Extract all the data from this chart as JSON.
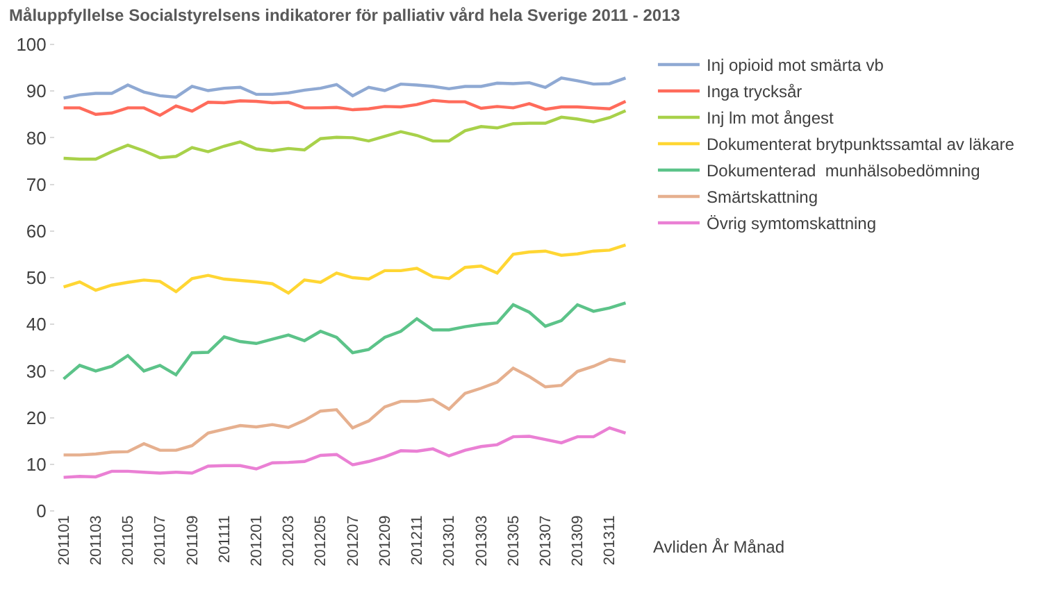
{
  "chart_data": {
    "type": "line",
    "title": "Måluppfyllelse Socialstyrelsens indikatorer för palliativ vård hela Sverige 2011 - 2013",
    "xlabel": "Avliden År Månad",
    "categories": [
      "201101",
      null,
      "201103",
      null,
      "201105",
      null,
      "201107",
      null,
      "201109",
      null,
      "201111",
      null,
      "201201",
      null,
      "201203",
      null,
      "201205",
      null,
      "201207",
      null,
      "201209",
      null,
      "201211",
      null,
      "201301",
      null,
      "201303",
      null,
      "201305",
      null,
      "201307",
      null,
      "201309",
      null,
      "201311",
      null
    ],
    "ylim": [
      0,
      100
    ],
    "yticks": [
      0,
      10,
      20,
      30,
      40,
      50,
      60,
      70,
      80,
      90,
      100
    ],
    "grid": false,
    "legend": "top right",
    "marker": "none",
    "line_style": "solid",
    "series": [
      {
        "name": "Inj opioid mot smärta vb",
        "color": "#8fa9d3",
        "values": [
          88.5,
          89.2,
          89.5,
          89.5,
          91.3,
          89.8,
          89,
          88.7,
          91,
          90.1,
          90.6,
          90.8,
          89.3,
          89.3,
          89.6,
          90.2,
          90.6,
          91.4,
          89,
          90.8,
          90.1,
          91.5,
          91.3,
          91,
          90.5,
          91,
          91,
          91.7,
          91.6,
          91.8,
          90.8,
          92.8,
          92.2,
          91.5,
          91.6,
          92.8
        ]
      },
      {
        "name": "Inga trycksår",
        "color": "#ff6b5b",
        "values": [
          86.4,
          86.4,
          85,
          85.3,
          86.4,
          86.4,
          84.8,
          86.8,
          85.7,
          87.6,
          87.5,
          87.9,
          87.8,
          87.5,
          87.6,
          86.4,
          86.4,
          86.5,
          86,
          86.2,
          86.7,
          86.6,
          87.1,
          88,
          87.7,
          87.7,
          86.3,
          86.7,
          86.4,
          87.3,
          86.1,
          86.6,
          86.6,
          86.4,
          86.2,
          87.8
        ]
      },
      {
        "name": "Inj lm mot ångest",
        "color": "#a8d14a",
        "values": [
          75.6,
          75.4,
          75.4,
          77,
          78.4,
          77.2,
          75.7,
          76,
          77.9,
          77,
          78.2,
          79.1,
          77.6,
          77.2,
          77.7,
          77.4,
          79.8,
          80.1,
          80,
          79.3,
          80.3,
          81.3,
          80.5,
          79.3,
          79.3,
          81.5,
          82.4,
          82.1,
          83,
          83.1,
          83.1,
          84.4,
          84,
          83.4,
          84.3,
          85.8
        ]
      },
      {
        "name": "Dokumenterat brytpunktssamtal av läkare",
        "color": "#ffd633",
        "values": [
          48,
          49.1,
          47.3,
          48.4,
          49,
          49.5,
          49.2,
          47,
          49.8,
          50.5,
          49.7,
          49.4,
          49.1,
          48.7,
          46.7,
          49.5,
          49,
          51,
          50,
          49.7,
          51.5,
          51.5,
          52,
          50.2,
          49.8,
          52.2,
          52.5,
          51,
          55,
          55.5,
          55.7,
          54.8,
          55.1,
          55.7,
          55.9,
          57
        ]
      },
      {
        "name": "Dokumenterad  munhälsobedömning",
        "color": "#5cc389",
        "values": [
          28.3,
          31.2,
          30,
          31,
          33.3,
          30,
          31.2,
          29.2,
          33.9,
          34,
          37.3,
          36.3,
          35.9,
          36.8,
          37.7,
          36.5,
          38.5,
          37.2,
          33.9,
          34.6,
          37.2,
          38.5,
          41.2,
          38.8,
          38.8,
          39.5,
          40,
          40.3,
          44.2,
          42.6,
          39.6,
          40.8,
          44.2,
          42.8,
          43.5,
          44.6
        ]
      },
      {
        "name": "Smärtskattning",
        "color": "#e6b08f",
        "values": [
          12,
          12,
          12.2,
          12.6,
          12.7,
          14.4,
          13,
          13,
          14,
          16.7,
          17.5,
          18.3,
          18,
          18.5,
          17.9,
          19.4,
          21.4,
          21.7,
          17.8,
          19.3,
          22.3,
          23.5,
          23.5,
          23.9,
          21.8,
          25.2,
          26.3,
          27.6,
          30.6,
          28.8,
          26.6,
          26.9,
          29.9,
          31,
          32.5,
          32
        ]
      },
      {
        "name": "Övrig symtomskattning",
        "color": "#ea80d4",
        "values": [
          7.2,
          7.4,
          7.3,
          8.5,
          8.5,
          8.3,
          8.1,
          8.3,
          8.1,
          9.6,
          9.7,
          9.7,
          9,
          10.3,
          10.4,
          10.6,
          11.9,
          12.1,
          9.9,
          10.6,
          11.6,
          12.9,
          12.8,
          13.3,
          11.8,
          13,
          13.8,
          14.2,
          15.9,
          16,
          15.3,
          14.6,
          15.9,
          15.9,
          17.8,
          16.7
        ]
      }
    ]
  }
}
